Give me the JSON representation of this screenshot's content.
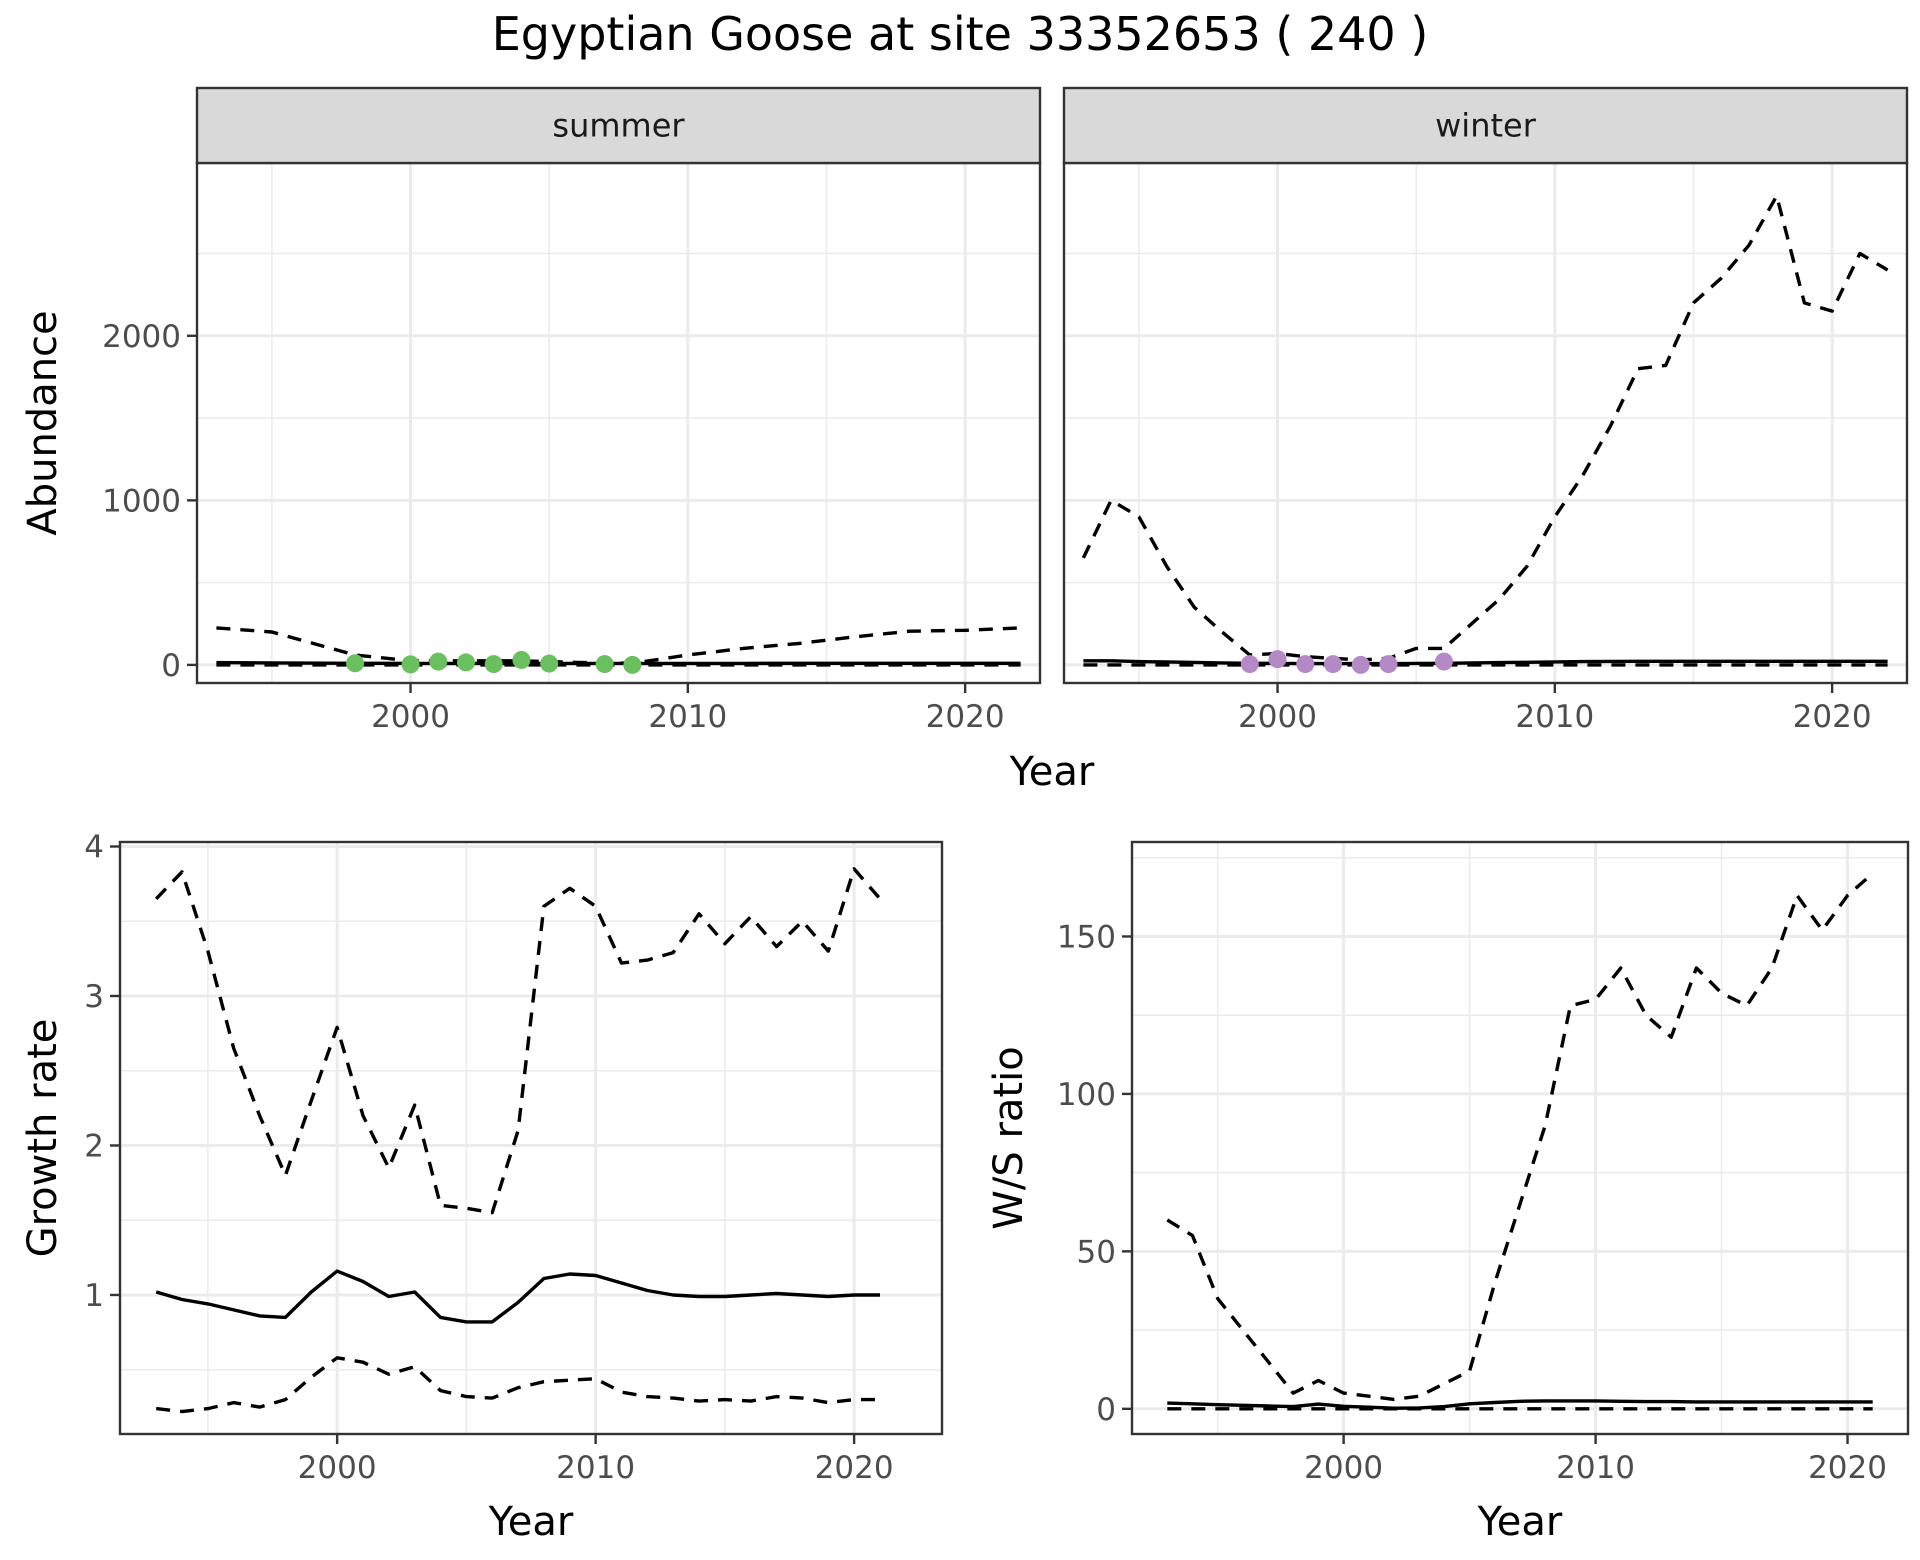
{
  "title": "Egyptian Goose at site 33352653 ( 240 )",
  "colors": {
    "summer_points": "#6abf5e",
    "winter_points": "#b48ac6",
    "line": "#000000",
    "grid": "#ebebeb",
    "strip_bg": "#d9d9d9"
  },
  "chart_data": [
    {
      "type": "line",
      "panel": "summer",
      "strip_label": "summer",
      "xlabel": "Year",
      "ylabel": "Abundance",
      "xlim": [
        1992.3,
        2022.7
      ],
      "ylim": [
        -110,
        3050
      ],
      "xticks": [
        2000,
        2010,
        2020
      ],
      "yticks": [
        0,
        1000,
        2000
      ],
      "x": [
        1993,
        1995,
        1998,
        2000,
        2002,
        2004,
        2006,
        2008,
        2010,
        2012,
        2014,
        2016,
        2018,
        2020,
        2022
      ],
      "series": [
        {
          "role": "estimate",
          "style": "solid",
          "values": [
            14,
            12,
            10,
            9,
            9,
            9,
            9,
            9,
            9,
            9,
            10,
            10,
            10,
            10,
            10
          ]
        },
        {
          "role": "upper",
          "style": "dashed",
          "values": [
            225,
            200,
            60,
            25,
            25,
            25,
            15,
            10,
            60,
            100,
            130,
            170,
            205,
            210,
            225
          ]
        },
        {
          "role": "lower",
          "style": "dashed",
          "values": [
            0,
            0,
            0,
            0,
            0,
            0,
            0,
            0,
            0,
            0,
            0,
            0,
            0,
            0,
            0
          ]
        }
      ],
      "points": {
        "x": [
          1998,
          2000,
          2001,
          2002,
          2003,
          2004,
          2005,
          2007,
          2008
        ],
        "y": [
          10,
          3,
          20,
          15,
          5,
          30,
          8,
          5,
          0
        ]
      }
    },
    {
      "type": "line",
      "panel": "winter",
      "strip_label": "winter",
      "xlabel": "Year",
      "ylabel": "",
      "xlim": [
        1992.3,
        2022.7
      ],
      "ylim": [
        -110,
        3050
      ],
      "xticks": [
        2000,
        2010,
        2020
      ],
      "yticks": [
        0,
        1000,
        2000
      ],
      "x": [
        1993,
        1994,
        1995,
        1996,
        1997,
        1998,
        1999,
        2000,
        2001,
        2002,
        2003,
        2004,
        2005,
        2006,
        2007,
        2008,
        2009,
        2010,
        2011,
        2012,
        2013,
        2014,
        2015,
        2016,
        2017,
        2018,
        2019,
        2020,
        2021,
        2022
      ],
      "series": [
        {
          "role": "estimate",
          "style": "solid",
          "values": [
            25,
            25,
            20,
            18,
            15,
            12,
            10,
            9,
            8,
            8,
            8,
            8,
            9,
            10,
            12,
            14,
            16,
            18,
            20,
            21,
            22,
            22,
            22,
            22,
            22,
            22,
            22,
            22,
            22,
            22
          ]
        },
        {
          "role": "upper",
          "style": "dashed",
          "values": [
            650,
            1000,
            900,
            600,
            350,
            200,
            60,
            70,
            50,
            40,
            30,
            40,
            100,
            100,
            250,
            400,
            600,
            900,
            1150,
            1450,
            1800,
            1820,
            2200,
            2350,
            2550,
            2850,
            2200,
            2150,
            2500,
            2400
          ]
        },
        {
          "role": "lower",
          "style": "dashed",
          "values": [
            0,
            0,
            0,
            0,
            0,
            0,
            0,
            0,
            0,
            0,
            0,
            0,
            0,
            0,
            0,
            0,
            0,
            0,
            0,
            0,
            0,
            0,
            0,
            0,
            0,
            0,
            0,
            0,
            0,
            0
          ]
        }
      ],
      "points": {
        "x": [
          1999,
          2000,
          2001,
          2002,
          2003,
          2004,
          2006
        ],
        "y": [
          5,
          35,
          5,
          5,
          0,
          5,
          20
        ]
      }
    },
    {
      "type": "line",
      "panel": "growth",
      "xlabel": "Year",
      "ylabel": "Growth rate",
      "xlim": [
        1991.6,
        2023.4
      ],
      "ylim": [
        0.07,
        4.03
      ],
      "xticks": [
        2000,
        2010,
        2020
      ],
      "yticks": [
        1,
        2,
        3,
        4
      ],
      "x": [
        1993,
        1994,
        1995,
        1996,
        1997,
        1998,
        1999,
        2000,
        2001,
        2002,
        2003,
        2004,
        2005,
        2006,
        2007,
        2008,
        2009,
        2010,
        2011,
        2012,
        2013,
        2014,
        2015,
        2016,
        2017,
        2018,
        2019,
        2020,
        2021
      ],
      "series": [
        {
          "role": "estimate",
          "style": "solid",
          "values": [
            1.02,
            0.97,
            0.94,
            0.9,
            0.86,
            0.85,
            1.02,
            1.16,
            1.09,
            0.99,
            1.02,
            0.85,
            0.82,
            0.82,
            0.95,
            1.11,
            1.14,
            1.13,
            1.08,
            1.03,
            1.0,
            0.99,
            0.99,
            1.0,
            1.01,
            1.0,
            0.99,
            1.0,
            1.0
          ]
        },
        {
          "role": "upper",
          "style": "dashed",
          "values": [
            3.65,
            3.83,
            3.3,
            2.65,
            2.2,
            1.8,
            2.3,
            2.79,
            2.2,
            1.85,
            2.27,
            1.6,
            1.58,
            1.55,
            2.1,
            3.6,
            3.72,
            3.6,
            3.22,
            3.24,
            3.29,
            3.55,
            3.35,
            3.53,
            3.33,
            3.5,
            3.3,
            3.85,
            3.65
          ]
        },
        {
          "role": "lower",
          "style": "dashed",
          "values": [
            0.24,
            0.22,
            0.24,
            0.28,
            0.25,
            0.3,
            0.45,
            0.58,
            0.55,
            0.47,
            0.52,
            0.36,
            0.32,
            0.31,
            0.38,
            0.42,
            0.43,
            0.44,
            0.35,
            0.32,
            0.31,
            0.29,
            0.3,
            0.29,
            0.32,
            0.31,
            0.28,
            0.3,
            0.3
          ]
        }
      ]
    },
    {
      "type": "line",
      "panel": "ws_ratio",
      "xlabel": "Year",
      "ylabel": "W/S ratio",
      "xlim": [
        1991.6,
        2022.4
      ],
      "ylim": [
        -8,
        180
      ],
      "xticks": [
        2000,
        2010,
        2020
      ],
      "yticks": [
        0,
        50,
        100,
        150
      ],
      "x": [
        1993,
        1994,
        1995,
        1996,
        1997,
        1998,
        1999,
        2000,
        2001,
        2002,
        2003,
        2004,
        2005,
        2006,
        2007,
        2008,
        2009,
        2010,
        2011,
        2012,
        2013,
        2014,
        2015,
        2016,
        2017,
        2018,
        2019,
        2020,
        2021
      ],
      "series": [
        {
          "role": "estimate",
          "style": "solid",
          "values": [
            1.8,
            1.6,
            1.3,
            1.1,
            0.9,
            0.7,
            1.5,
            0.8,
            0.5,
            0.2,
            0.3,
            0.7,
            1.6,
            2.0,
            2.4,
            2.5,
            2.5,
            2.5,
            2.4,
            2.3,
            2.3,
            2.2,
            2.2,
            2.2,
            2.2,
            2.2,
            2.2,
            2.2,
            2.2
          ]
        },
        {
          "role": "upper",
          "style": "dashed",
          "values": [
            60,
            55,
            35,
            25,
            15,
            5,
            9,
            5,
            4,
            3,
            4,
            8,
            12,
            40,
            65,
            90,
            128,
            130,
            140,
            125,
            118,
            140,
            132,
            128,
            140,
            163,
            152,
            163,
            170
          ]
        },
        {
          "role": "lower",
          "style": "dashed",
          "values": [
            0,
            0,
            0,
            0,
            0,
            0,
            0,
            0,
            0,
            0,
            0,
            0,
            0,
            0,
            0,
            0,
            0,
            0,
            0,
            0,
            0,
            0,
            0,
            0,
            0,
            0,
            0,
            0,
            0
          ]
        }
      ]
    }
  ]
}
